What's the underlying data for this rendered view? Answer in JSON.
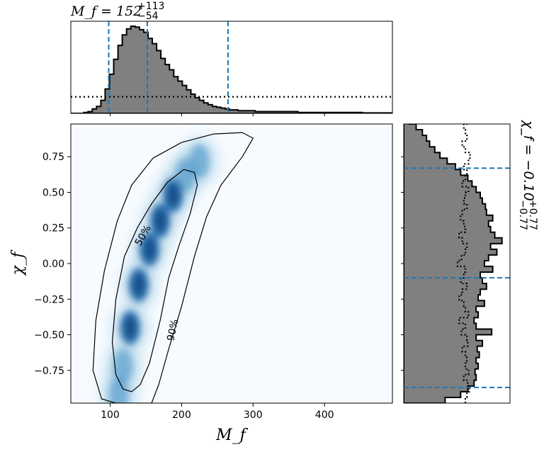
{
  "chart_data": {
    "type": "heatmap",
    "joint": {
      "xlabel": "M_f",
      "ylabel": "χ_f",
      "xlim": [
        45,
        495
      ],
      "ylim": [
        -0.98,
        0.98
      ],
      "xticks": [
        "100",
        "200",
        "300",
        "400"
      ],
      "yticks": [
        "0.75",
        "0.50",
        "0.25",
        "0.00",
        "−0.25",
        "−0.50",
        "−0.75"
      ],
      "contour_labels": [
        "50%",
        "90%"
      ],
      "colormap": "Blues",
      "density_ridge": [
        {
          "x": 112,
          "y": -0.92
        },
        {
          "x": 118,
          "y": -0.72
        },
        {
          "x": 128,
          "y": -0.45
        },
        {
          "x": 140,
          "y": -0.15
        },
        {
          "x": 155,
          "y": 0.1
        },
        {
          "x": 170,
          "y": 0.3
        },
        {
          "x": 188,
          "y": 0.48
        },
        {
          "x": 205,
          "y": 0.62
        },
        {
          "x": 225,
          "y": 0.72
        }
      ],
      "contour_50": [
        [
          118,
          -0.88
        ],
        [
          108,
          -0.78
        ],
        [
          103,
          -0.55
        ],
        [
          108,
          -0.25
        ],
        [
          120,
          0.05
        ],
        [
          138,
          0.25
        ],
        [
          158,
          0.42
        ],
        [
          180,
          0.57
        ],
        [
          203,
          0.66
        ],
        [
          218,
          0.64
        ],
        [
          222,
          0.55
        ],
        [
          212,
          0.35
        ],
        [
          196,
          0.12
        ],
        [
          182,
          -0.1
        ],
        [
          170,
          -0.4
        ],
        [
          155,
          -0.7
        ],
        [
          142,
          -0.85
        ],
        [
          130,
          -0.9
        ]
      ],
      "contour_90": [
        [
          108,
          -0.98
        ],
        [
          88,
          -0.95
        ],
        [
          76,
          -0.75
        ],
        [
          80,
          -0.4
        ],
        [
          92,
          -0.05
        ],
        [
          110,
          0.3
        ],
        [
          130,
          0.55
        ],
        [
          160,
          0.74
        ],
        [
          200,
          0.85
        ],
        [
          245,
          0.91
        ],
        [
          285,
          0.92
        ],
        [
          300,
          0.88
        ],
        [
          285,
          0.75
        ],
        [
          255,
          0.55
        ],
        [
          235,
          0.33
        ],
        [
          218,
          0.05
        ],
        [
          200,
          -0.3
        ],
        [
          182,
          -0.6
        ],
        [
          168,
          -0.85
        ],
        [
          158,
          -0.98
        ]
      ]
    },
    "top_marginal": {
      "title_main": "M_f = 152",
      "title_sup": "+113",
      "title_sub": "−54",
      "quantiles": [
        98,
        152,
        265
      ],
      "bins_start": 45,
      "bin_width": 6,
      "posterior": [
        0,
        0,
        0,
        0.01,
        0.02,
        0.05,
        0.08,
        0.15,
        0.28,
        0.45,
        0.62,
        0.78,
        0.9,
        0.97,
        1.0,
        0.99,
        0.96,
        0.93,
        0.86,
        0.8,
        0.72,
        0.63,
        0.56,
        0.5,
        0.42,
        0.37,
        0.32,
        0.27,
        0.22,
        0.18,
        0.15,
        0.12,
        0.1,
        0.08,
        0.07,
        0.06,
        0.05,
        0.04,
        0.04,
        0.03,
        0.03,
        0.03,
        0.03,
        0.02,
        0.02,
        0.02,
        0.02,
        0.02,
        0.02,
        0.02,
        0.02,
        0.02,
        0.02,
        0.01,
        0.01,
        0.01,
        0.01,
        0.01,
        0.01,
        0.01,
        0.01,
        0.01,
        0.01,
        0.01,
        0.01,
        0.01,
        0.01,
        0.01,
        0.005,
        0.005,
        0.005,
        0.005,
        0.005,
        0.005,
        0.005
      ],
      "prior_level": 0.19
    },
    "right_marginal": {
      "title_main": "χ_f = −0.10",
      "title_sup": "+0.77",
      "title_sub": "−0.77",
      "quantiles": [
        0.67,
        -0.1,
        -0.87
      ],
      "bins_start": -0.98,
      "bin_width": 0.04,
      "posterior": [
        0.4,
        0.55,
        0.62,
        0.68,
        0.7,
        0.69,
        0.72,
        0.7,
        0.73,
        0.71,
        0.76,
        0.7,
        0.85,
        0.7,
        0.68,
        0.72,
        0.7,
        0.78,
        0.72,
        0.74,
        0.8,
        0.76,
        0.74,
        0.86,
        0.78,
        0.82,
        0.9,
        0.84,
        0.95,
        0.88,
        0.84,
        0.82,
        0.86,
        0.8,
        0.79,
        0.76,
        0.74,
        0.7,
        0.66,
        0.62,
        0.55,
        0.5,
        0.42,
        0.35,
        0.3,
        0.25,
        0.22,
        0.18,
        0.12,
        0.05
      ],
      "prior": [
        0.7,
        0.72,
        0.75,
        0.73,
        0.68,
        0.74,
        0.7,
        0.72,
        0.7,
        0.66,
        0.73,
        0.72,
        0.65,
        0.7,
        0.62,
        0.74,
        0.7,
        0.68,
        0.62,
        0.66,
        0.72,
        0.64,
        0.68,
        0.7,
        0.6,
        0.65,
        0.7,
        0.72,
        0.66,
        0.62,
        0.7,
        0.68,
        0.64,
        0.66,
        0.72,
        0.68,
        0.7,
        0.74,
        0.66,
        0.7,
        0.72,
        0.68,
        0.74,
        0.76,
        0.7,
        0.66,
        0.72,
        0.7,
        0.68,
        0.72
      ]
    },
    "colors": {
      "quantile_line": "#1f77b4",
      "histogram_fill": "#808080",
      "histogram_edge": "#000000"
    }
  }
}
